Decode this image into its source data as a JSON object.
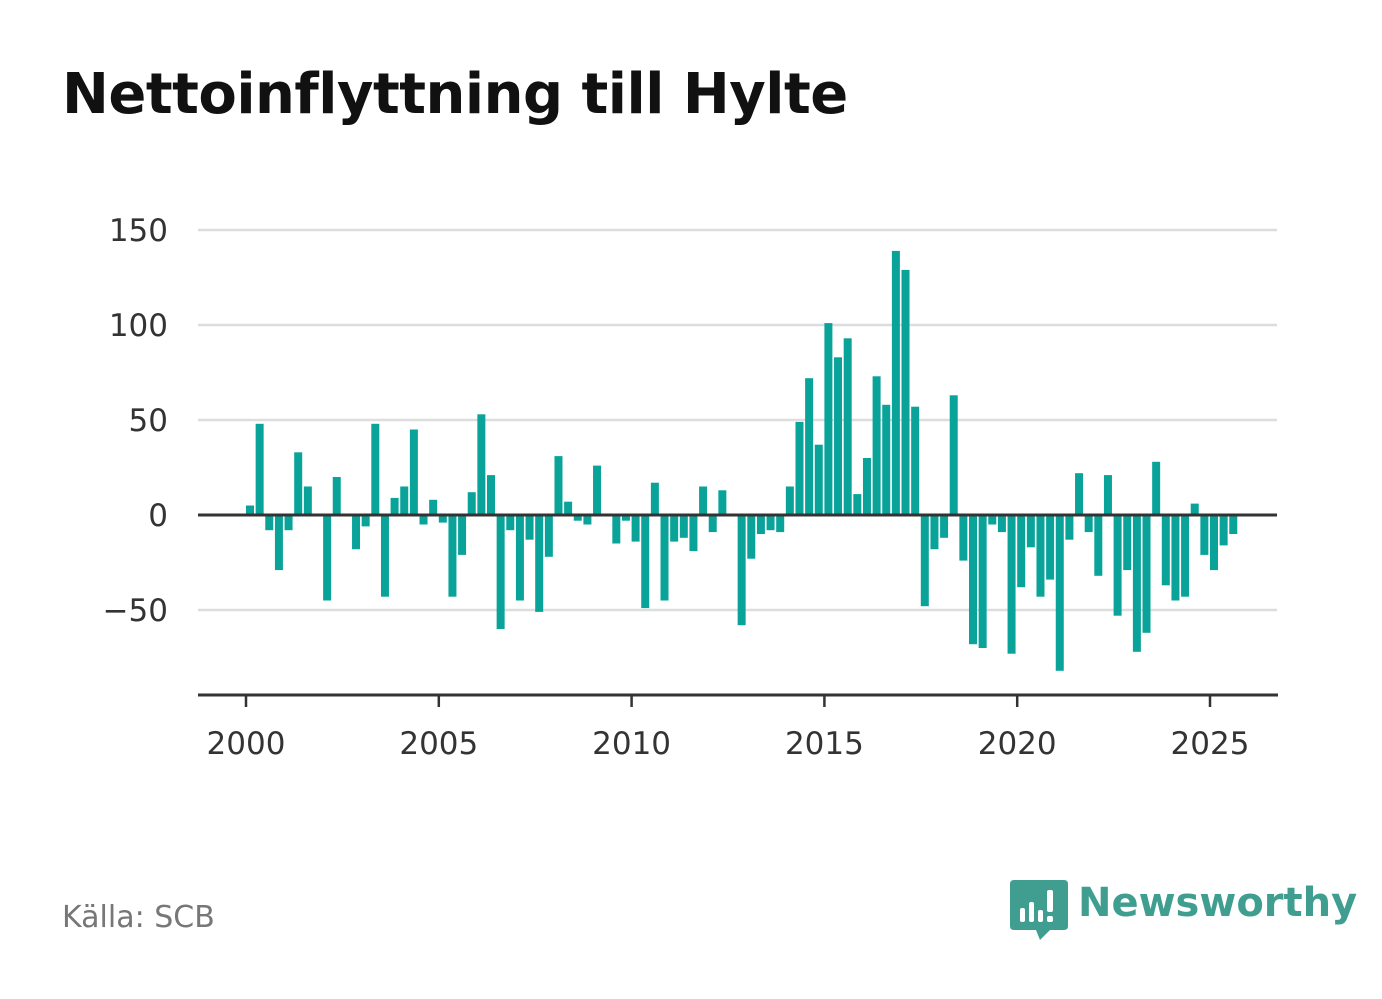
{
  "title": "Nettoinflyttning till Hylte",
  "source": "Källa: SCB",
  "brand": {
    "name": "Newsworthy",
    "icon": "bar-chart-speech-bubble-icon",
    "color": "#3f9e8f"
  },
  "chart_data": {
    "type": "bar",
    "title": "Nettoinflyttning till Hylte",
    "xlabel": "",
    "ylabel": "",
    "bar_color": "#0aa39a",
    "grid": true,
    "xlim": [
      1999.75,
      2027.4
    ],
    "ylim": [
      -95,
      150
    ],
    "yticks": [
      150,
      100,
      50,
      0,
      -50
    ],
    "ytick_labels": [
      "150",
      "100",
      "50",
      "0",
      "−50"
    ],
    "xticks": [
      2000,
      2005,
      2010,
      2015,
      2020,
      2025
    ],
    "xtick_labels": [
      "2000",
      "2005",
      "2010",
      "2015",
      "2020",
      "2025"
    ],
    "x": [
      "2000 Q1",
      "2000 Q2",
      "2000 Q3",
      "2000 Q4",
      "2001 Q1",
      "2001 Q2",
      "2001 Q3",
      "2001 Q4",
      "2002 Q1",
      "2002 Q2",
      "2002 Q3",
      "2002 Q4",
      "2003 Q1",
      "2003 Q2",
      "2003 Q3",
      "2003 Q4",
      "2004 Q1",
      "2004 Q2",
      "2004 Q3",
      "2004 Q4",
      "2005 Q1",
      "2005 Q2",
      "2005 Q3",
      "2005 Q4",
      "2006 Q1",
      "2006 Q2",
      "2006 Q3",
      "2006 Q4",
      "2007 Q1",
      "2007 Q2",
      "2007 Q3",
      "2007 Q4",
      "2008 Q1",
      "2008 Q2",
      "2008 Q3",
      "2008 Q4",
      "2009 Q1",
      "2009 Q2",
      "2009 Q3",
      "2009 Q4",
      "2010 Q1",
      "2010 Q2",
      "2010 Q3",
      "2010 Q4",
      "2011 Q1",
      "2011 Q2",
      "2011 Q3",
      "2011 Q4",
      "2012 Q1",
      "2012 Q2",
      "2012 Q3",
      "2012 Q4",
      "2013 Q1",
      "2013 Q2",
      "2013 Q3",
      "2013 Q4",
      "2014 Q1",
      "2014 Q2",
      "2014 Q3",
      "2014 Q4",
      "2015 Q1",
      "2015 Q2",
      "2015 Q3",
      "2015 Q4",
      "2016 Q1",
      "2016 Q2",
      "2016 Q3",
      "2016 Q4",
      "2017 Q1",
      "2017 Q2",
      "2017 Q3",
      "2017 Q4",
      "2018 Q1",
      "2018 Q2",
      "2018 Q3",
      "2018 Q4",
      "2019 Q1",
      "2019 Q2",
      "2019 Q3",
      "2019 Q4",
      "2020 Q1",
      "2020 Q2",
      "2020 Q3",
      "2020 Q4",
      "2021 Q1",
      "2021 Q2",
      "2021 Q3",
      "2021 Q4",
      "2022 Q1",
      "2022 Q2",
      "2022 Q3",
      "2022 Q4",
      "2023 Q1",
      "2023 Q2",
      "2023 Q3",
      "2023 Q4",
      "2024 Q1",
      "2024 Q2",
      "2024 Q3",
      "2024 Q4",
      "2025 Q1",
      "2025 Q2",
      "2025 Q3"
    ],
    "values": [
      5,
      48,
      -8,
      -29,
      -8,
      33,
      15,
      0,
      -45,
      20,
      0,
      -18,
      -6,
      48,
      -43,
      9,
      15,
      45,
      -5,
      8,
      -4,
      -43,
      -21,
      12,
      53,
      21,
      -60,
      -8,
      -45,
      -13,
      -51,
      -22,
      31,
      7,
      -3,
      -5,
      26,
      0,
      -15,
      -3,
      -14,
      -49,
      17,
      -45,
      -14,
      -12,
      -19,
      15,
      -9,
      13,
      0,
      -58,
      -23,
      -10,
      -8,
      -9,
      15,
      49,
      72,
      37,
      101,
      83,
      93,
      11,
      30,
      73,
      58,
      139,
      129,
      57,
      -48,
      -18,
      -12,
      63,
      -24,
      -68,
      -70,
      -5,
      -9,
      -73,
      -38,
      -17,
      -43,
      -34,
      -82,
      -13,
      22,
      -9,
      -32,
      21,
      -53,
      -29,
      -72,
      -62,
      28,
      -37,
      -45,
      -43,
      6,
      -21,
      -29,
      -16,
      -10
    ]
  }
}
